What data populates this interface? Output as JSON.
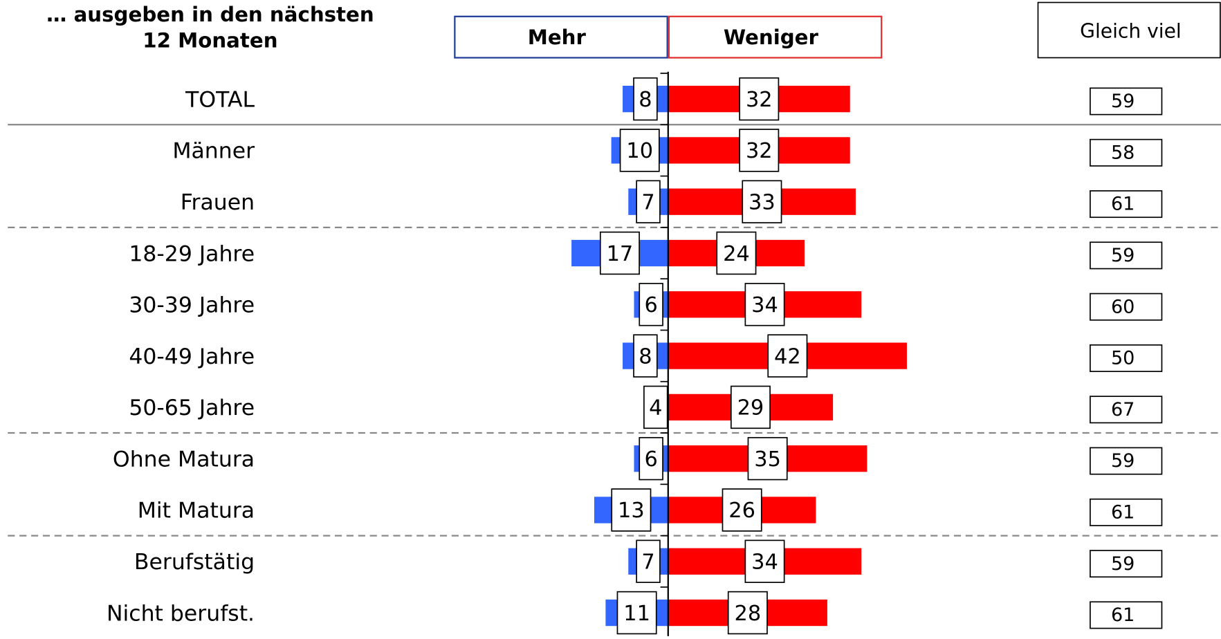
{
  "chart_data": {
    "type": "diverging-bar",
    "title": [
      "… ausgeben in den nächsten",
      "12 Monaten"
    ],
    "categories": [
      "TOTAL",
      "Männer",
      "Frauen",
      "18-29 Jahre",
      "30-39 Jahre",
      "40-49 Jahre",
      "50-65 Jahre",
      "Ohne Matura",
      "Mit Matura",
      "Berufstätig",
      "Nicht berufst."
    ],
    "series": [
      {
        "name": "Mehr",
        "color": "#3366ff",
        "values": [
          8,
          10,
          7,
          17,
          6,
          8,
          4,
          6,
          13,
          7,
          11
        ]
      },
      {
        "name": "Weniger",
        "color": "#ff0000",
        "values": [
          32,
          32,
          33,
          24,
          34,
          42,
          29,
          35,
          26,
          34,
          28
        ]
      },
      {
        "name": "Gleich viel",
        "color": "#000000",
        "values": [
          59,
          58,
          61,
          59,
          60,
          50,
          67,
          59,
          61,
          59,
          61
        ]
      }
    ]
  }
}
